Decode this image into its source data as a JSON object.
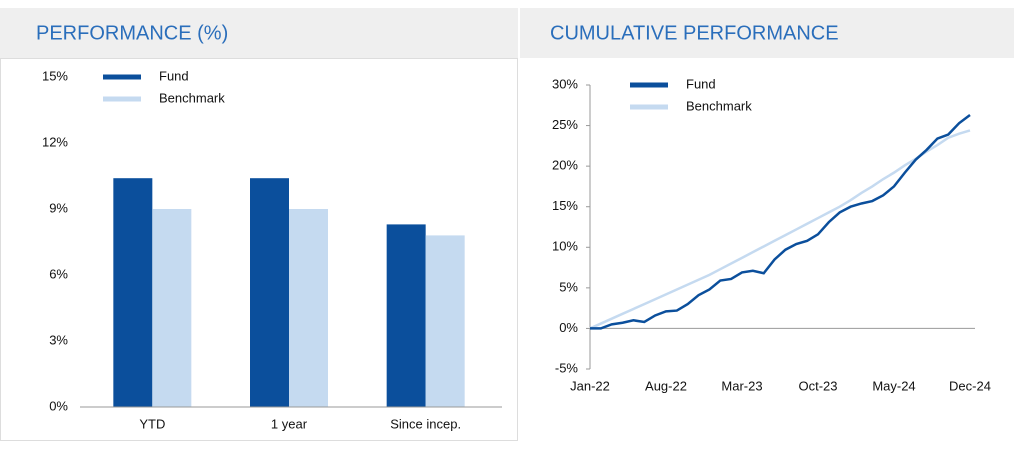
{
  "chart_data": [
    {
      "type": "bar",
      "title": "PERFORMANCE (%)",
      "categories": [
        "YTD",
        "1 year",
        "Since incep."
      ],
      "series": [
        {
          "name": "Fund",
          "color": "#0b4f9c",
          "values": [
            10.4,
            10.4,
            8.3
          ]
        },
        {
          "name": "Benchmark",
          "color": "#c5daf0",
          "values": [
            9.0,
            9.0,
            7.8
          ]
        }
      ],
      "ylim": [
        0,
        15
      ],
      "yticks": [
        {
          "value": 0,
          "label": "0%"
        },
        {
          "value": 3,
          "label": "3%"
        },
        {
          "value": 6,
          "label": "6%"
        },
        {
          "value": 9,
          "label": "9%"
        },
        {
          "value": 12,
          "label": "12%"
        },
        {
          "value": 15,
          "label": "15%"
        }
      ],
      "legend": "top-left"
    },
    {
      "type": "line",
      "title": "CUMULATIVE PERFORMANCE",
      "categories": [
        "Jan-22",
        null,
        null,
        null,
        null,
        null,
        null,
        "Aug-22",
        null,
        null,
        null,
        null,
        null,
        null,
        "Mar-23",
        null,
        null,
        null,
        null,
        null,
        null,
        "Oct-23",
        null,
        null,
        null,
        null,
        null,
        null,
        "May-24",
        null,
        null,
        null,
        null,
        null,
        null,
        "Dec-24"
      ],
      "series": [
        {
          "name": "Fund",
          "color": "#0b4f9c",
          "values": [
            0,
            0,
            0.5,
            0.7,
            1.0,
            0.8,
            1.6,
            2.1,
            2.2,
            3.0,
            4.1,
            4.8,
            5.9,
            6.1,
            6.9,
            7.1,
            6.8,
            8.5,
            9.7,
            10.4,
            10.8,
            11.6,
            13.1,
            14.3,
            15.0,
            15.4,
            15.7,
            16.4,
            17.5,
            19.2,
            20.8,
            22.0,
            23.4,
            23.9,
            25.3,
            26.3
          ]
        },
        {
          "name": "Benchmark",
          "color": "#c5daf0",
          "values": [
            0,
            0.6,
            1.2,
            1.8,
            2.4,
            3.0,
            3.6,
            4.2,
            4.8,
            5.4,
            6.0,
            6.6,
            7.3,
            8.0,
            8.7,
            9.4,
            10.1,
            10.8,
            11.5,
            12.2,
            12.9,
            13.6,
            14.3,
            15.0,
            15.8,
            16.7,
            17.5,
            18.4,
            19.2,
            20.1,
            20.9,
            21.8,
            22.6,
            23.5,
            24.0,
            24.4
          ]
        }
      ],
      "ylim": [
        -5,
        30
      ],
      "yticks": [
        {
          "value": -5,
          "label": "-5%"
        },
        {
          "value": 0,
          "label": "0%"
        },
        {
          "value": 5,
          "label": "5%"
        },
        {
          "value": 10,
          "label": "10%"
        },
        {
          "value": 15,
          "label": "15%"
        },
        {
          "value": 20,
          "label": "20%"
        },
        {
          "value": 25,
          "label": "25%"
        },
        {
          "value": 30,
          "label": "30%"
        }
      ],
      "legend": "top-left"
    }
  ]
}
